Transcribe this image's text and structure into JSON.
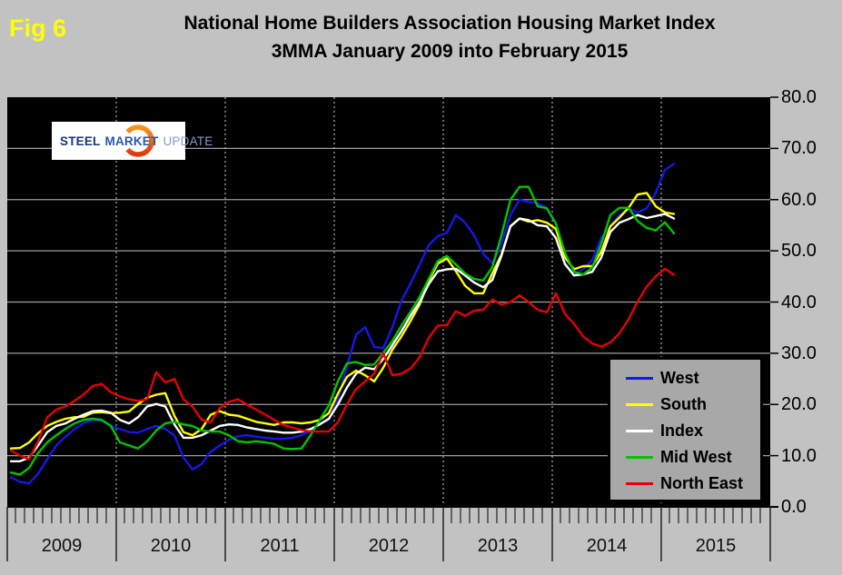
{
  "fig_label": "Fig 6",
  "title": {
    "line1": "National Home Builders Association Housing Market Index",
    "line2": "3MMA January 2009 into February 2015"
  },
  "logo": {
    "steel": "STEEL",
    "market": "MARKET",
    "update": "UPDATE",
    "swoosh_color_top": "#f7941d",
    "swoosh_color_bottom": "#dd3b0b"
  },
  "colors": {
    "page_background": "#c2c2c2",
    "plot_background": "#000000",
    "gridline": "#9e9e9e",
    "year_divider_dashed": "#cfcfcf",
    "legend_background": "#a8a8a8",
    "fig_label": "#ffff00"
  },
  "chart_data": {
    "type": "line",
    "title": "National Home Builders Association Housing Market Index 3MMA January 2009 into February 2015",
    "x_first_month": "2009-01",
    "x_last_month": "2015-02",
    "n_points": 74,
    "x_year_labels": [
      "2009",
      "2010",
      "2011",
      "2012",
      "2013",
      "2014",
      "2015"
    ],
    "y_tick_labels": [
      "0.0",
      "10.0",
      "20.0",
      "30.0",
      "40.0",
      "50.0",
      "60.0",
      "70.0",
      "80.0"
    ],
    "ylim": [
      0,
      80
    ],
    "grid": true,
    "legend_position": "inside-bottom-right",
    "series": [
      {
        "name": "West",
        "color": "#1717e6",
        "values": [
          5.8,
          4.9,
          4.6,
          6.5,
          9.3,
          12.0,
          13.7,
          15.2,
          16.3,
          17.0,
          16.8,
          15.8,
          15.2,
          14.6,
          14.5,
          15.2,
          15.8,
          15.2,
          14.0,
          9.6,
          7.3,
          8.4,
          10.8,
          12.0,
          13.1,
          13.8,
          14.0,
          13.7,
          13.5,
          13.3,
          13.3,
          13.5,
          14.0,
          14.9,
          16.3,
          17.0,
          21.0,
          27.5,
          33.6,
          35.1,
          31.2,
          31.0,
          35.1,
          40.3,
          43.6,
          47.3,
          51.1,
          52.9,
          53.5,
          57.0,
          55.5,
          53.0,
          49.4,
          47.6,
          51.3,
          57.0,
          60.0,
          59.5,
          59.3,
          58.4,
          55.5,
          47.6,
          45.2,
          46.4,
          48.2,
          52.5,
          54.8,
          57.0,
          58.2,
          57.5,
          58.3,
          61.3,
          65.8,
          67.0
        ]
      },
      {
        "name": "South",
        "color": "#ffff00",
        "values": [
          11.4,
          11.5,
          12.6,
          14.4,
          15.8,
          16.6,
          17.2,
          17.5,
          17.6,
          18.4,
          18.5,
          18.3,
          18.4,
          18.6,
          20.1,
          21.3,
          21.9,
          22.2,
          17.8,
          14.6,
          14.0,
          15.2,
          18.0,
          18.7,
          18.0,
          17.8,
          17.2,
          16.6,
          16.3,
          16.0,
          16.5,
          16.5,
          16.3,
          16.5,
          17.0,
          18.3,
          22.1,
          25.4,
          26.6,
          25.7,
          24.5,
          27.2,
          30.7,
          33.3,
          36.3,
          39.5,
          44.1,
          47.5,
          48.5,
          46.0,
          43.2,
          41.7,
          41.7,
          45.6,
          49.2,
          54.8,
          56.3,
          55.7,
          56.0,
          55.5,
          54.3,
          48.7,
          46.4,
          47.0,
          47.0,
          49.8,
          54.8,
          56.5,
          58.4,
          61.0,
          61.3,
          58.7,
          57.5,
          57.2
        ]
      },
      {
        "name": "Index",
        "color": "#ffffff",
        "values": [
          8.9,
          8.9,
          9.6,
          12.0,
          14.6,
          15.8,
          16.3,
          17.2,
          18.0,
          18.7,
          18.8,
          18.4,
          17.0,
          16.3,
          17.5,
          19.6,
          20.1,
          19.6,
          16.1,
          13.5,
          13.5,
          14.0,
          14.9,
          15.8,
          16.1,
          16.0,
          15.5,
          15.2,
          14.9,
          14.7,
          14.5,
          14.5,
          14.7,
          15.2,
          16.1,
          17.2,
          20.0,
          23.3,
          26.0,
          27.2,
          26.9,
          28.9,
          31.6,
          34.3,
          37.3,
          40.0,
          43.5,
          46.0,
          46.4,
          46.5,
          45.2,
          43.8,
          42.9,
          44.3,
          49.0,
          54.8,
          56.3,
          56.0,
          55.0,
          54.8,
          52.5,
          47.4,
          45.2,
          45.4,
          45.9,
          48.7,
          53.7,
          55.5,
          56.2,
          57.0,
          56.4,
          56.8,
          57.2,
          56.3
        ]
      },
      {
        "name": "Mid West",
        "color": "#00c400",
        "values": [
          6.7,
          6.3,
          7.6,
          10.5,
          12.6,
          14.0,
          15.2,
          16.3,
          17.0,
          17.2,
          17.0,
          15.8,
          12.6,
          12.0,
          11.4,
          12.8,
          14.9,
          16.3,
          16.6,
          16.1,
          15.8,
          14.9,
          14.7,
          14.7,
          14.0,
          12.8,
          12.6,
          12.8,
          12.6,
          12.3,
          11.4,
          11.3,
          11.4,
          14.0,
          17.0,
          19.8,
          24.5,
          28.0,
          28.3,
          27.7,
          27.8,
          30.1,
          32.4,
          35.4,
          38.1,
          41.0,
          44.5,
          48.0,
          49.0,
          47.3,
          45.6,
          44.5,
          44.2,
          46.8,
          53.0,
          60.0,
          62.5,
          62.5,
          58.7,
          58.3,
          55.3,
          49.6,
          45.9,
          45.4,
          46.7,
          51.4,
          57.0,
          58.4,
          58.4,
          55.8,
          54.5,
          54.0,
          55.6,
          53.4
        ]
      },
      {
        "name": "North East",
        "color": "#e60000",
        "values": [
          11.0,
          10.0,
          9.3,
          12.8,
          17.5,
          19.0,
          19.6,
          20.7,
          21.9,
          23.6,
          24.0,
          22.4,
          21.6,
          21.0,
          20.7,
          21.0,
          26.3,
          24.3,
          25.0,
          21.0,
          19.6,
          17.0,
          16.5,
          19.3,
          20.5,
          21.0,
          20.0,
          19.0,
          18.0,
          17.0,
          16.0,
          15.5,
          15.0,
          14.7,
          14.7,
          14.7,
          16.5,
          20.0,
          23.0,
          24.5,
          26.0,
          30.0,
          25.7,
          26.0,
          27.0,
          29.2,
          33.0,
          35.4,
          35.5,
          38.2,
          37.3,
          38.3,
          38.5,
          40.5,
          39.5,
          40.0,
          41.3,
          40.0,
          38.5,
          38.0,
          41.7,
          37.7,
          35.7,
          33.3,
          31.9,
          31.3,
          32.1,
          33.9,
          36.6,
          40.1,
          43.0,
          45.0,
          46.5,
          45.3
        ]
      }
    ]
  }
}
